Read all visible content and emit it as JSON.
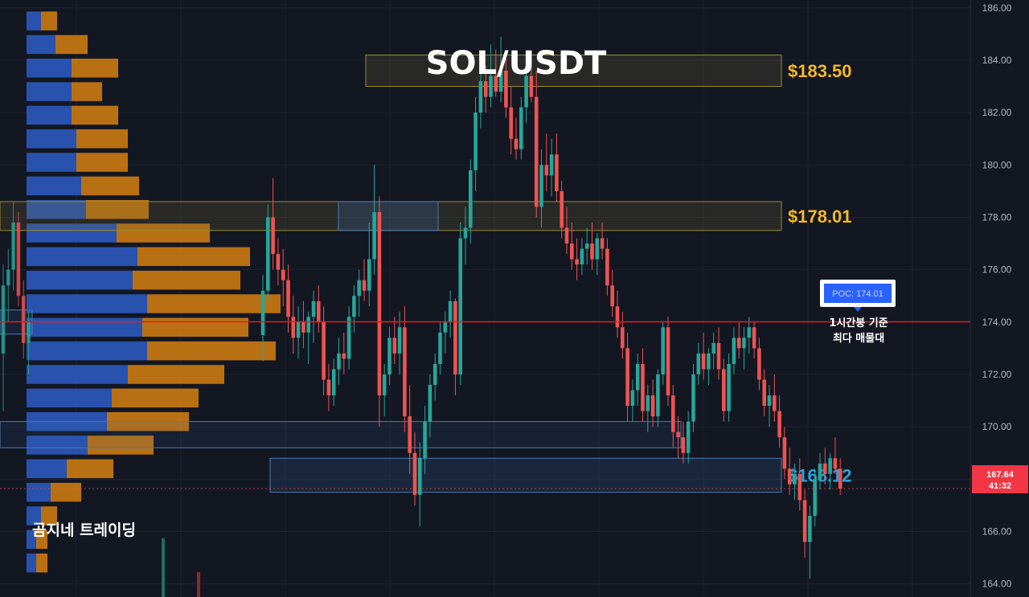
{
  "chart_data": {
    "type": "candlestick",
    "title": "SOL/USDT",
    "brand": "곰지네 트레이딩",
    "ylim": [
      163.5,
      186.3
    ],
    "y_ticks": [
      "164.00",
      "166.00",
      "168.00",
      "170.00",
      "172.00",
      "174.00",
      "176.00",
      "178.00",
      "180.00",
      "182.00",
      "184.00",
      "186.00"
    ],
    "current_price": {
      "price": "167.64",
      "countdown": "41:32",
      "value": 167.64
    },
    "poc": {
      "label": "POC: 174.01",
      "value": 174.01,
      "note_lines": [
        "1시간봉 기준",
        "최다 매물대"
      ]
    },
    "levels": [
      {
        "label": "$183.50",
        "low": 183.0,
        "high": 184.2,
        "color": "#f5b824",
        "kind": "resistance"
      },
      {
        "label": "$178.01",
        "low": 177.5,
        "high": 178.6,
        "color": "#f5b824",
        "kind": "resistance"
      },
      {
        "label": "$168.12",
        "low": 167.5,
        "high": 168.8,
        "color": "#29a3e0",
        "kind": "support"
      }
    ],
    "extra_zones": [
      {
        "low": 169.2,
        "high": 170.2,
        "color": "#4a7ab5"
      }
    ],
    "volume_profile": [
      {
        "price": 185.5,
        "buy": 18,
        "sell": 20
      },
      {
        "price": 184.6,
        "buy": 36,
        "sell": 40
      },
      {
        "price": 183.7,
        "buy": 56,
        "sell": 58
      },
      {
        "price": 182.8,
        "buy": 56,
        "sell": 38
      },
      {
        "price": 181.9,
        "buy": 56,
        "sell": 58
      },
      {
        "price": 181.0,
        "buy": 62,
        "sell": 64
      },
      {
        "price": 180.1,
        "buy": 62,
        "sell": 64
      },
      {
        "price": 179.2,
        "buy": 68,
        "sell": 72
      },
      {
        "price": 178.3,
        "buy": 74,
        "sell": 78
      },
      {
        "price": 177.4,
        "buy": 112,
        "sell": 116
      },
      {
        "price": 176.5,
        "buy": 138,
        "sell": 140
      },
      {
        "price": 175.6,
        "buy": 132,
        "sell": 134
      },
      {
        "price": 174.7,
        "buy": 150,
        "sell": 166
      },
      {
        "price": 173.8,
        "buy": 144,
        "sell": 132
      },
      {
        "price": 172.9,
        "buy": 150,
        "sell": 160
      },
      {
        "price": 172.0,
        "buy": 126,
        "sell": 120
      },
      {
        "price": 171.1,
        "buy": 106,
        "sell": 108
      },
      {
        "price": 170.2,
        "buy": 100,
        "sell": 102
      },
      {
        "price": 169.3,
        "buy": 76,
        "sell": 82
      },
      {
        "price": 168.4,
        "buy": 50,
        "sell": 58
      },
      {
        "price": 167.5,
        "buy": 30,
        "sell": 38
      },
      {
        "price": 166.6,
        "buy": 18,
        "sell": 20
      },
      {
        "price": 165.7,
        "buy": 12,
        "sell": 14
      },
      {
        "price": 164.8,
        "buy": 12,
        "sell": 14
      }
    ],
    "candles": [
      [
        173.5,
        175.8,
        172.5,
        175.2
      ],
      [
        175.2,
        178.5,
        174.8,
        178.0
      ],
      [
        178.0,
        179.5,
        176.0,
        176.6
      ],
      [
        176.6,
        177.2,
        175.4,
        176.0
      ],
      [
        176.0,
        176.8,
        174.6,
        175.6
      ],
      [
        175.6,
        176.2,
        173.6,
        174.2
      ],
      [
        174.2,
        175.0,
        172.8,
        173.4
      ],
      [
        173.4,
        174.6,
        172.6,
        174.0
      ],
      [
        174.0,
        174.8,
        173.0,
        173.6
      ],
      [
        173.6,
        174.4,
        172.4,
        174.2
      ],
      [
        174.2,
        175.2,
        173.2,
        174.8
      ],
      [
        174.8,
        175.4,
        173.6,
        174.0
      ],
      [
        174.0,
        174.6,
        171.2,
        171.8
      ],
      [
        171.8,
        172.4,
        170.6,
        171.2
      ],
      [
        171.2,
        172.6,
        170.8,
        172.2
      ],
      [
        172.2,
        173.4,
        171.6,
        172.8
      ],
      [
        172.8,
        173.6,
        172.0,
        172.6
      ],
      [
        172.6,
        174.6,
        172.2,
        174.2
      ],
      [
        174.2,
        175.4,
        173.6,
        175.0
      ],
      [
        175.0,
        176.0,
        174.2,
        175.6
      ],
      [
        175.6,
        176.4,
        174.8,
        175.2
      ],
      [
        175.2,
        177.8,
        174.6,
        176.4
      ],
      [
        176.4,
        180.0,
        175.8,
        178.2
      ],
      [
        178.2,
        178.8,
        170.0,
        171.2
      ],
      [
        171.2,
        172.4,
        170.4,
        172.0
      ],
      [
        172.0,
        173.8,
        171.6,
        173.4
      ],
      [
        173.4,
        174.2,
        172.4,
        172.8
      ],
      [
        172.8,
        174.4,
        172.0,
        173.8
      ],
      [
        173.8,
        174.6,
        169.8,
        170.4
      ],
      [
        170.4,
        171.6,
        168.2,
        169.0
      ],
      [
        169.0,
        169.8,
        167.0,
        167.4
      ],
      [
        167.4,
        169.4,
        166.2,
        168.8
      ],
      [
        168.8,
        170.8,
        168.2,
        170.2
      ],
      [
        170.2,
        172.0,
        169.6,
        171.6
      ],
      [
        171.6,
        172.8,
        171.0,
        172.4
      ],
      [
        172.4,
        174.0,
        172.0,
        173.6
      ],
      [
        173.6,
        174.4,
        172.8,
        174.0
      ],
      [
        174.0,
        175.2,
        173.4,
        174.8
      ],
      [
        174.8,
        174.9,
        171.2,
        172.0
      ],
      [
        172.0,
        177.8,
        171.6,
        177.2
      ],
      [
        177.2,
        178.4,
        176.2,
        177.6
      ],
      [
        177.6,
        180.2,
        177.0,
        179.8
      ],
      [
        179.8,
        182.6,
        179.0,
        182.0
      ],
      [
        182.0,
        184.0,
        181.4,
        183.2
      ],
      [
        183.2,
        183.8,
        182.0,
        182.6
      ],
      [
        182.6,
        184.6,
        182.2,
        183.4
      ],
      [
        183.4,
        184.4,
        182.6,
        182.8
      ],
      [
        182.8,
        184.9,
        182.4,
        183.6
      ],
      [
        183.6,
        184.2,
        181.8,
        182.2
      ],
      [
        182.2,
        183.0,
        180.4,
        181.0
      ],
      [
        181.0,
        181.8,
        180.2,
        180.6
      ],
      [
        180.6,
        182.6,
        180.2,
        182.2
      ],
      [
        182.2,
        183.8,
        181.6,
        183.4
      ],
      [
        183.4,
        184.0,
        182.4,
        182.6
      ],
      [
        182.6,
        183.6,
        178.0,
        178.4
      ],
      [
        178.4,
        180.6,
        177.6,
        180.0
      ],
      [
        180.0,
        181.2,
        179.0,
        179.6
      ],
      [
        179.6,
        181.0,
        178.8,
        180.4
      ],
      [
        180.4,
        181.2,
        178.6,
        179.0
      ],
      [
        179.0,
        179.4,
        177.2,
        177.6
      ],
      [
        177.6,
        178.4,
        176.6,
        177.0
      ],
      [
        177.0,
        177.8,
        176.0,
        176.4
      ],
      [
        176.4,
        177.2,
        175.6,
        176.2
      ],
      [
        176.2,
        177.2,
        175.8,
        176.8
      ],
      [
        176.8,
        177.6,
        176.2,
        177.0
      ],
      [
        177.0,
        177.8,
        176.0,
        176.4
      ],
      [
        176.4,
        177.4,
        175.8,
        177.2
      ],
      [
        177.2,
        177.8,
        176.4,
        176.8
      ],
      [
        176.8,
        177.2,
        175.0,
        175.4
      ],
      [
        175.4,
        176.0,
        174.2,
        174.6
      ],
      [
        174.6,
        175.2,
        173.4,
        173.8
      ],
      [
        173.8,
        174.4,
        172.6,
        173.0
      ],
      [
        173.0,
        173.6,
        170.2,
        170.8
      ],
      [
        170.8,
        171.8,
        170.2,
        171.4
      ],
      [
        171.4,
        172.8,
        170.8,
        172.4
      ],
      [
        172.4,
        173.0,
        170.2,
        170.6
      ],
      [
        170.6,
        171.6,
        169.8,
        171.2
      ],
      [
        171.2,
        171.8,
        170.0,
        170.4
      ],
      [
        170.4,
        172.2,
        170.0,
        172.0
      ],
      [
        172.0,
        174.0,
        171.6,
        173.8
      ],
      [
        173.8,
        174.2,
        170.8,
        171.2
      ],
      [
        171.2,
        171.6,
        169.2,
        169.8
      ],
      [
        169.8,
        170.4,
        168.8,
        169.6
      ],
      [
        169.6,
        170.2,
        168.6,
        169.0
      ],
      [
        169.0,
        170.6,
        168.6,
        170.2
      ],
      [
        170.2,
        172.4,
        169.8,
        172.0
      ],
      [
        172.0,
        173.2,
        171.6,
        172.8
      ],
      [
        172.8,
        173.6,
        171.8,
        172.2
      ],
      [
        172.2,
        173.0,
        171.6,
        172.8
      ],
      [
        172.8,
        173.6,
        172.2,
        173.2
      ],
      [
        173.2,
        173.8,
        171.8,
        172.2
      ],
      [
        172.2,
        172.6,
        170.2,
        170.6
      ],
      [
        170.6,
        172.8,
        170.2,
        172.4
      ],
      [
        172.4,
        173.8,
        172.0,
        173.4
      ],
      [
        173.4,
        174.0,
        172.6,
        173.0
      ],
      [
        173.0,
        173.8,
        172.2,
        173.4
      ],
      [
        173.4,
        174.2,
        172.8,
        173.8
      ],
      [
        173.8,
        174.0,
        172.6,
        173.0
      ],
      [
        173.0,
        173.4,
        171.4,
        171.8
      ],
      [
        171.8,
        172.2,
        170.4,
        170.8
      ],
      [
        170.8,
        171.6,
        170.0,
        171.2
      ],
      [
        171.2,
        172.0,
        170.2,
        170.6
      ],
      [
        170.6,
        171.2,
        169.2,
        169.6
      ],
      [
        169.6,
        170.0,
        168.0,
        168.4
      ],
      [
        168.4,
        169.2,
        167.4,
        167.8
      ],
      [
        167.8,
        168.6,
        167.2,
        168.2
      ],
      [
        168.2,
        168.8,
        166.8,
        167.2
      ],
      [
        167.2,
        167.6,
        165.0,
        165.6
      ],
      [
        165.6,
        167.0,
        164.2,
        166.6
      ],
      [
        166.6,
        168.4,
        166.2,
        168.0
      ],
      [
        168.0,
        169.0,
        167.6,
        168.6
      ],
      [
        168.6,
        169.2,
        167.8,
        168.2
      ],
      [
        168.2,
        169.0,
        167.6,
        168.8
      ],
      [
        168.8,
        169.6,
        168.2,
        168.4
      ],
      [
        168.4,
        168.8,
        167.4,
        167.64
      ]
    ]
  }
}
